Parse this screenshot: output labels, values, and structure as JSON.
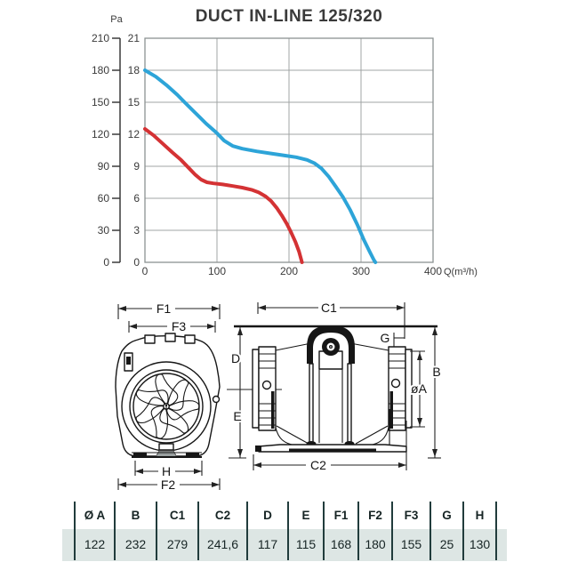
{
  "title": "DUCT IN-LINE 125/320",
  "colors": {
    "curve_blue": "#2da4d8",
    "curve_red": "#d43234",
    "grid": "#a0a4a4",
    "frame": "#8c9292",
    "axis_text": "#3a3a3a",
    "drawing_line": "#161616",
    "table_line": "#213c3c",
    "table_band": "#dde6e4"
  },
  "chart_data": {
    "type": "line",
    "title": "DUCT IN-LINE 125/320",
    "grid": true,
    "x_axis": {
      "label": "Q(m³/h)",
      "ticks": [
        0,
        100,
        200,
        300,
        400
      ],
      "range": [
        0,
        400
      ]
    },
    "y_axis_left_outer": {
      "label": "Pa",
      "ticks": [
        0,
        30,
        60,
        90,
        120,
        150,
        180,
        210
      ],
      "range": [
        0,
        210
      ]
    },
    "y_axis_left_inner": {
      "ticks": [
        0,
        3,
        6,
        9,
        12,
        15,
        18,
        21
      ],
      "range": [
        0,
        21
      ]
    },
    "series": [
      {
        "name": "blue-curve",
        "color": "#2da4d8",
        "points": [
          [
            0,
            18
          ],
          [
            15,
            17.4
          ],
          [
            30,
            16.6
          ],
          [
            45,
            15.7
          ],
          [
            55,
            15
          ],
          [
            70,
            14
          ],
          [
            85,
            13
          ],
          [
            100,
            12.1
          ],
          [
            110,
            11.4
          ],
          [
            122,
            10.9
          ],
          [
            135,
            10.65
          ],
          [
            155,
            10.4
          ],
          [
            175,
            10.2
          ],
          [
            195,
            10.0
          ],
          [
            210,
            9.85
          ],
          [
            225,
            9.6
          ],
          [
            235,
            9.3
          ],
          [
            245,
            8.8
          ],
          [
            255,
            8.05
          ],
          [
            265,
            7.1
          ],
          [
            275,
            6.1
          ],
          [
            285,
            4.9
          ],
          [
            295,
            3.5
          ],
          [
            304,
            2.1
          ],
          [
            312,
            1.0
          ],
          [
            318,
            0.2
          ],
          [
            320,
            0
          ]
        ]
      },
      {
        "name": "red-curve",
        "color": "#d43234",
        "points": [
          [
            0,
            12.5
          ],
          [
            12,
            11.9
          ],
          [
            25,
            11.1
          ],
          [
            38,
            10.3
          ],
          [
            50,
            9.6
          ],
          [
            60,
            8.9
          ],
          [
            70,
            8.2
          ],
          [
            78,
            7.75
          ],
          [
            86,
            7.5
          ],
          [
            95,
            7.4
          ],
          [
            108,
            7.3
          ],
          [
            122,
            7.15
          ],
          [
            135,
            7.0
          ],
          [
            148,
            6.8
          ],
          [
            158,
            6.55
          ],
          [
            167,
            6.2
          ],
          [
            175,
            5.75
          ],
          [
            183,
            5.1
          ],
          [
            190,
            4.4
          ],
          [
            197,
            3.6
          ],
          [
            203,
            2.8
          ],
          [
            209,
            1.9
          ],
          [
            214,
            1.0
          ],
          [
            218,
            0
          ]
        ]
      }
    ]
  },
  "drawings": {
    "front_view": {
      "labels": {
        "f1": "F1",
        "f3": "F3",
        "h": "H",
        "f2": "F2"
      }
    },
    "side_view": {
      "labels": {
        "c1": "C1",
        "g": "G",
        "d": "D",
        "e": "E",
        "dia_a": "øA",
        "b": "B",
        "c2": "C2"
      }
    }
  },
  "table": {
    "headers": [
      "Ø A",
      "B",
      "C1",
      "C2",
      "D",
      "E",
      "F1",
      "F2",
      "F3",
      "G",
      "H"
    ],
    "values": [
      "122",
      "232",
      "279",
      "241,6",
      "117",
      "115",
      "168",
      "180",
      "155",
      "25",
      "130"
    ]
  }
}
